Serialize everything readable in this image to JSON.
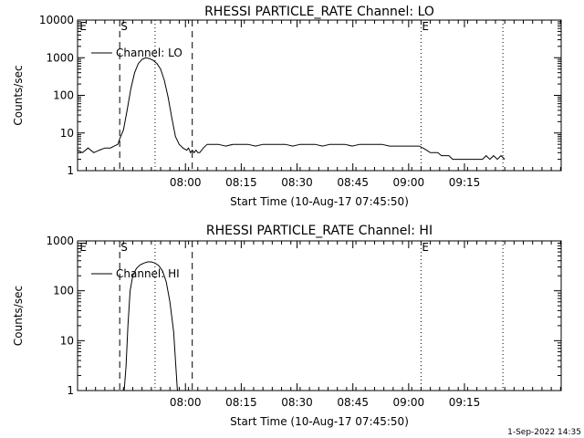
{
  "timestamp": "1-Sep-2022 14:35",
  "chart_data": [
    {
      "type": "line",
      "title": "RHESSI PARTICLE_RATE Channel: LO",
      "xlabel": "Start Time (10-Aug-17 07:45:50)",
      "ylabel": "Counts/sec",
      "legend": "Channel: LO",
      "legend_position": "top-left",
      "yscale": "log",
      "ylim": [
        1,
        10000
      ],
      "xlim_minutes": [
        -14.83,
        115.17
      ],
      "x_ticks": [
        "08:00",
        "08:15",
        "08:30",
        "08:45",
        "09:00",
        "09:15"
      ],
      "x_tick_minutes": [
        14.17,
        29.17,
        44.17,
        59.17,
        74.17,
        89.17
      ],
      "y_ticks": [
        "1",
        "10",
        "100",
        "1000",
        "10000"
      ],
      "y_tick_values": [
        1,
        10,
        100,
        1000,
        10000
      ],
      "markers": [
        {
          "label": "E",
          "x_minutes": -14.5,
          "style": "none"
        },
        {
          "label": "S",
          "x_minutes": -3.5,
          "style": "dashed"
        },
        {
          "label": "",
          "x_minutes": 6.0,
          "style": "dotted"
        },
        {
          "label": "",
          "x_minutes": 16.0,
          "style": "dashed"
        },
        {
          "label": "E",
          "x_minutes": 77.5,
          "style": "dotted"
        },
        {
          "label": "",
          "x_minutes": 99.5,
          "style": "dotted"
        }
      ],
      "series": [
        {
          "name": "Channel: LO",
          "x": [
            -14.8,
            -13.5,
            -12,
            -10.5,
            -9,
            -7.5,
            -6,
            -5,
            -4,
            -3.5,
            -2.5,
            -1.5,
            -0.5,
            0.5,
            1.5,
            2.5,
            3.5,
            4.5,
            5.5,
            6.5,
            7.5,
            8.5,
            9.5,
            10.5,
            11.5,
            12.5,
            13.5,
            14.5,
            15,
            15.5,
            16,
            16.5,
            17,
            17.5,
            18,
            19,
            20,
            21,
            23,
            25,
            27,
            29,
            31,
            33,
            35,
            37,
            39,
            41,
            43,
            45,
            47,
            49,
            51,
            53,
            55,
            57,
            59,
            61,
            63,
            65,
            67,
            69,
            71,
            73,
            75,
            77,
            78,
            79,
            80,
            81,
            82,
            83,
            84,
            85,
            86,
            87,
            88,
            89,
            90,
            91,
            92,
            93,
            94,
            95,
            96,
            97,
            98,
            99,
            100
          ],
          "y": [
            3.5,
            3,
            4,
            3,
            3.5,
            4,
            4,
            4.5,
            5,
            7,
            12,
            40,
            150,
            400,
            700,
            900,
            1000,
            950,
            850,
            700,
            500,
            250,
            90,
            25,
            8,
            5,
            4,
            3.5,
            4,
            3,
            3.5,
            3,
            3.5,
            3,
            3,
            4,
            5,
            5,
            5,
            4.5,
            5,
            5,
            5,
            4.5,
            5,
            5,
            5,
            5,
            4.5,
            5,
            5,
            5,
            4.5,
            5,
            5,
            5,
            4.5,
            5,
            5,
            5,
            5,
            4.5,
            4.5,
            4.5,
            4.5,
            4.5,
            4,
            3.5,
            3,
            3,
            3,
            2.5,
            2.5,
            2.5,
            2,
            2,
            2,
            2,
            2,
            2,
            2,
            2,
            2,
            2.5,
            2,
            2.5,
            2,
            2.5,
            2
          ]
        }
      ]
    },
    {
      "type": "line",
      "title": "RHESSI PARTICLE_RATE Channel: HI",
      "xlabel": "Start Time (10-Aug-17 07:45:50)",
      "ylabel": "Counts/sec",
      "legend": "Channel: HI",
      "legend_position": "top-left",
      "yscale": "log",
      "ylim": [
        1,
        1000
      ],
      "xlim_minutes": [
        -14.83,
        115.17
      ],
      "x_ticks": [
        "08:00",
        "08:15",
        "08:30",
        "08:45",
        "09:00",
        "09:15"
      ],
      "x_tick_minutes": [
        14.17,
        29.17,
        44.17,
        59.17,
        74.17,
        89.17
      ],
      "y_ticks": [
        "1",
        "10",
        "100",
        "1000"
      ],
      "y_tick_values": [
        1,
        10,
        100,
        1000
      ],
      "markers": [
        {
          "label": "E",
          "x_minutes": -14.5,
          "style": "none"
        },
        {
          "label": "S",
          "x_minutes": -3.5,
          "style": "dashed"
        },
        {
          "label": "",
          "x_minutes": 6.0,
          "style": "dotted"
        },
        {
          "label": "",
          "x_minutes": 16.0,
          "style": "dashed"
        },
        {
          "label": "E",
          "x_minutes": 77.5,
          "style": "dotted"
        },
        {
          "label": "",
          "x_minutes": 99.5,
          "style": "dotted"
        }
      ],
      "series": [
        {
          "name": "Channel: HI",
          "x": [
            -2.3,
            -1.8,
            -1.3,
            -0.7,
            0,
            1,
            2,
            3,
            4,
            5,
            6,
            7,
            8,
            9,
            10,
            11,
            11.5,
            12
          ],
          "y": [
            1,
            3,
            20,
            100,
            200,
            280,
            330,
            360,
            380,
            380,
            360,
            320,
            250,
            150,
            60,
            15,
            4,
            1
          ]
        }
      ]
    }
  ]
}
